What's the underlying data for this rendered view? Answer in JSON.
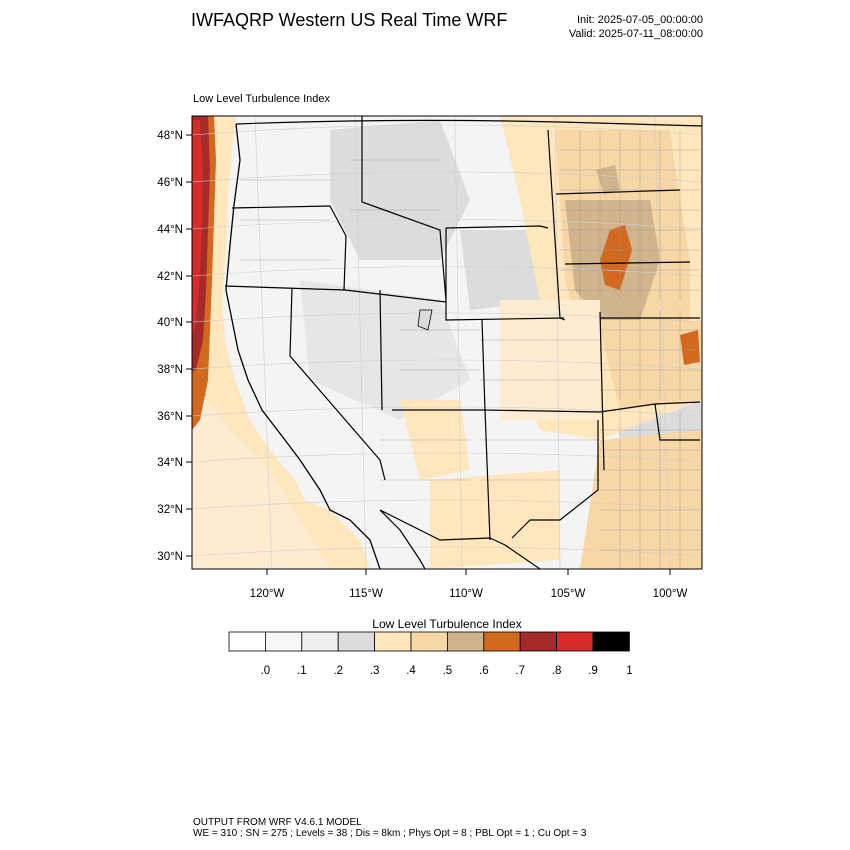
{
  "header": {
    "title": "IWFAQRP Western US Real Time WRF",
    "init": "Init: 2025-07-05_00:00:00",
    "valid": "Valid: 2025-07-11_08:00:00"
  },
  "map": {
    "subtitle": "Low Level Turbulence Index",
    "lat_labels": [
      "48°N",
      "46°N",
      "44°N",
      "42°N",
      "40°N",
      "38°N",
      "36°N",
      "34°N",
      "32°N",
      "30°N"
    ],
    "lon_labels": [
      "120°W",
      "115°W",
      "110°W",
      "105°W",
      "100°W"
    ]
  },
  "colorbar": {
    "title": "Low Level Turbulence Index",
    "labels": [
      ".0",
      ".1",
      ".2",
      ".3",
      ".4",
      ".5",
      ".6",
      ".7",
      ".8",
      ".9",
      "1"
    ],
    "colors": [
      "#ffffff",
      "#f7f7f7",
      "#efefef",
      "#dcdcdc",
      "#ffe7bd",
      "#f7d7a6",
      "#d2b48c",
      "#d2691e",
      "#a52a2a",
      "#d62c2c",
      "#000000"
    ]
  },
  "footer": {
    "line1": "OUTPUT FROM WRF V4.6.1 MODEL",
    "line2": "WE = 310 ; SN = 275 ; Levels = 38 ; Dis = 8km ; Phys Opt = 8 ; PBL Opt = 1 ; Cu Opt = 3"
  }
}
